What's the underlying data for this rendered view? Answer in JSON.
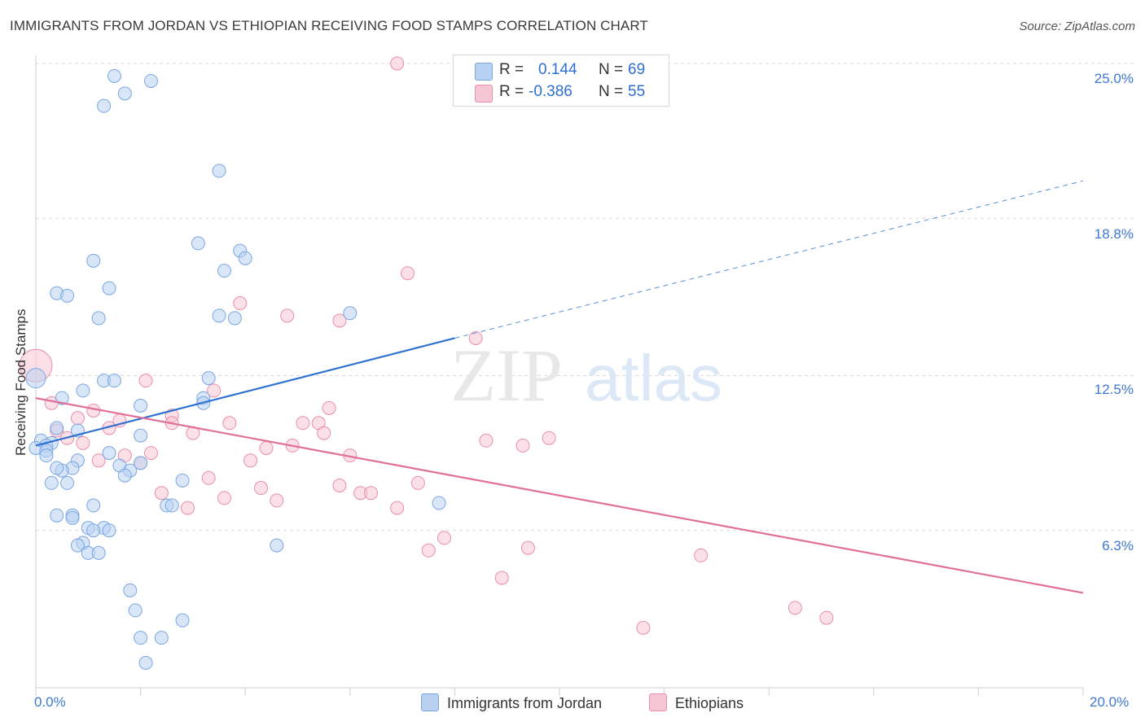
{
  "title": "IMMIGRANTS FROM JORDAN VS ETHIOPIAN RECEIVING FOOD STAMPS CORRELATION CHART",
  "source": "Source: ZipAtlas.com",
  "watermark": "ZIPatlas",
  "colors": {
    "blue_fill": "#b8d1f3",
    "blue_stroke": "#7aa6e0",
    "blue_line": "#2f72d0",
    "pink_fill": "#f7c6d4",
    "pink_stroke": "#e88fab",
    "pink_line": "#e0709a",
    "axis_text": "#3e78cf",
    "grid": "#d9d9d9"
  },
  "legend": {
    "rows": [
      {
        "r_label": "R =",
        "r_value": "0.144",
        "n_label": "N =",
        "n_value": "69",
        "color": "#b8d1f3",
        "stroke": "#7aa6e0"
      },
      {
        "r_label": "R =",
        "r_value": "-0.386",
        "n_label": "N =",
        "n_value": "55",
        "color": "#f7c6d4",
        "stroke": "#e88fab"
      }
    ]
  },
  "chart_data": {
    "type": "scatter",
    "title": "IMMIGRANTS FROM JORDAN VS ETHIOPIAN RECEIVING FOOD STAMPS CORRELATION CHART",
    "xlabel": "",
    "ylabel": "Receiving Food Stamps",
    "xlim": [
      0,
      20
    ],
    "ylim": [
      0,
      25.0
    ],
    "x_tick_labels": [
      "0.0%",
      "20.0%"
    ],
    "y_ticks": [
      6.3,
      12.5,
      18.8,
      25.0
    ],
    "y_tick_labels": [
      "6.3%",
      "12.5%",
      "18.8%",
      "25.0%"
    ],
    "grid": "horizontal dashed",
    "legend_position": "bottom-center",
    "series": [
      {
        "name": "Immigrants from Jordan",
        "trend": {
          "x": [
            0,
            8
          ],
          "y": [
            9.7,
            14.0
          ],
          "extended_to": [
            20,
            20.3
          ]
        },
        "points": [
          [
            1.5,
            24.5
          ],
          [
            1.7,
            23.8
          ],
          [
            2.2,
            24.3
          ],
          [
            1.3,
            23.3
          ],
          [
            3.5,
            20.7
          ],
          [
            3.1,
            17.8
          ],
          [
            3.9,
            17.5
          ],
          [
            4.0,
            17.2
          ],
          [
            3.6,
            16.7
          ],
          [
            1.1,
            17.1
          ],
          [
            1.4,
            16.0
          ],
          [
            0.4,
            15.8
          ],
          [
            0.6,
            15.7
          ],
          [
            1.2,
            14.8
          ],
          [
            3.5,
            14.9
          ],
          [
            3.8,
            14.8
          ],
          [
            6.0,
            15.0
          ],
          [
            0.0,
            12.4
          ],
          [
            1.3,
            12.3
          ],
          [
            1.5,
            12.3
          ],
          [
            3.3,
            12.4
          ],
          [
            0.9,
            11.9
          ],
          [
            0.5,
            11.6
          ],
          [
            3.2,
            11.6
          ],
          [
            3.2,
            11.4
          ],
          [
            2.0,
            11.3
          ],
          [
            0.4,
            10.4
          ],
          [
            0.8,
            10.3
          ],
          [
            2.0,
            10.1
          ],
          [
            0.1,
            9.9
          ],
          [
            0.3,
            9.8
          ],
          [
            0.2,
            9.7
          ],
          [
            0.0,
            9.6
          ],
          [
            0.2,
            9.5
          ],
          [
            0.2,
            9.3
          ],
          [
            1.4,
            9.4
          ],
          [
            0.8,
            9.1
          ],
          [
            1.6,
            8.9
          ],
          [
            2.0,
            9.0
          ],
          [
            0.7,
            8.8
          ],
          [
            0.5,
            8.7
          ],
          [
            0.4,
            8.8
          ],
          [
            1.8,
            8.7
          ],
          [
            1.7,
            8.5
          ],
          [
            2.8,
            8.3
          ],
          [
            0.3,
            8.2
          ],
          [
            0.6,
            8.2
          ],
          [
            1.1,
            7.3
          ],
          [
            2.5,
            7.3
          ],
          [
            2.6,
            7.3
          ],
          [
            7.7,
            7.4
          ],
          [
            0.7,
            6.9
          ],
          [
            0.4,
            6.9
          ],
          [
            0.7,
            6.8
          ],
          [
            1.0,
            6.4
          ],
          [
            1.3,
            6.4
          ],
          [
            1.4,
            6.3
          ],
          [
            1.1,
            6.3
          ],
          [
            0.9,
            5.8
          ],
          [
            0.8,
            5.7
          ],
          [
            4.6,
            5.7
          ],
          [
            1.0,
            5.4
          ],
          [
            1.2,
            5.4
          ],
          [
            1.8,
            3.9
          ],
          [
            1.9,
            3.1
          ],
          [
            2.8,
            2.7
          ],
          [
            2.0,
            2.0
          ],
          [
            2.4,
            2.0
          ],
          [
            2.1,
            1.0
          ]
        ]
      },
      {
        "name": "Ethiopians",
        "trend": {
          "x": [
            0,
            20
          ],
          "y": [
            11.6,
            3.8
          ]
        },
        "points": [
          [
            6.9,
            25.0
          ],
          [
            7.1,
            16.6
          ],
          [
            3.9,
            15.4
          ],
          [
            4.8,
            14.9
          ],
          [
            5.8,
            14.7
          ],
          [
            8.4,
            14.0
          ],
          [
            0.0,
            12.9
          ],
          [
            2.1,
            12.3
          ],
          [
            3.4,
            11.9
          ],
          [
            0.3,
            11.4
          ],
          [
            1.1,
            11.1
          ],
          [
            5.6,
            11.2
          ],
          [
            0.8,
            10.8
          ],
          [
            1.6,
            10.7
          ],
          [
            2.6,
            10.9
          ],
          [
            3.7,
            10.6
          ],
          [
            2.6,
            10.6
          ],
          [
            5.1,
            10.6
          ],
          [
            5.4,
            10.6
          ],
          [
            1.4,
            10.4
          ],
          [
            0.4,
            10.3
          ],
          [
            3.0,
            10.2
          ],
          [
            5.5,
            10.2
          ],
          [
            0.6,
            10.0
          ],
          [
            0.9,
            9.8
          ],
          [
            4.9,
            9.7
          ],
          [
            8.6,
            9.9
          ],
          [
            9.3,
            9.7
          ],
          [
            9.8,
            10.0
          ],
          [
            4.4,
            9.6
          ],
          [
            2.2,
            9.4
          ],
          [
            1.7,
            9.3
          ],
          [
            6.0,
            9.3
          ],
          [
            1.2,
            9.1
          ],
          [
            2.0,
            9.0
          ],
          [
            4.1,
            9.1
          ],
          [
            3.3,
            8.4
          ],
          [
            7.3,
            8.2
          ],
          [
            5.8,
            8.1
          ],
          [
            4.3,
            8.0
          ],
          [
            6.2,
            7.8
          ],
          [
            6.4,
            7.8
          ],
          [
            2.4,
            7.8
          ],
          [
            3.6,
            7.6
          ],
          [
            4.6,
            7.5
          ],
          [
            2.9,
            7.2
          ],
          [
            6.9,
            7.2
          ],
          [
            7.8,
            6.0
          ],
          [
            9.4,
            5.6
          ],
          [
            7.5,
            5.5
          ],
          [
            12.7,
            5.3
          ],
          [
            8.9,
            4.4
          ],
          [
            14.5,
            3.2
          ],
          [
            15.1,
            2.8
          ],
          [
            11.6,
            2.4
          ]
        ]
      }
    ]
  },
  "bottom_legend": [
    "Immigrants from Jordan",
    "Ethiopians"
  ]
}
